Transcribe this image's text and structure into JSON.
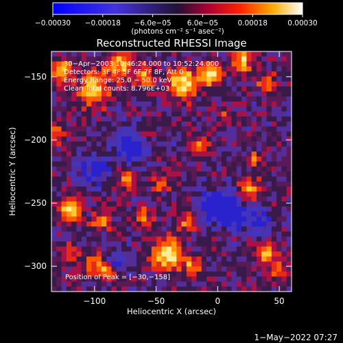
{
  "chart_data": {
    "type": "heatmap",
    "title": "Reconstructed RHESSI Image",
    "xlabel": "Heliocentric X (arcsec)",
    "ylabel": "Heliocentric Y (arcsec)",
    "xlim": [
      -135,
      60
    ],
    "ylim": [
      -320,
      -130
    ],
    "x_ticks": [
      -100,
      -50,
      0,
      50
    ],
    "y_ticks": [
      -150,
      -200,
      -250,
      -300
    ],
    "x_tick_labels": [
      "−100",
      "−50",
      "0",
      "50"
    ],
    "y_tick_labels": [
      "−150",
      "−200",
      "−250",
      "−300"
    ],
    "colorbar": {
      "range": [
        -0.0003,
        0.0003
      ],
      "ticks": [
        -0.0003,
        -0.00018,
        -6e-05,
        6e-05,
        0.00018,
        0.0003
      ],
      "tick_labels": [
        "−0.00030",
        "−0.00018",
        "−6.0e−05",
        "6.0e−05",
        "0.00018",
        "0.00030"
      ],
      "unit_label": "(photons cm⁻² s⁻¹ asec⁻²)"
    },
    "annotations": [
      "30−Apr−2003 10:46:24.000 to 10:52:24.000",
      "Detectors: 3F 4F 5F 6F 7F 8F, Att 0",
      "Energy Range: 25.0 − 50.0 keV",
      "Clean     Total counts: 8.796E+03"
    ],
    "peak_label": "Position of Peak = [−30,−158]",
    "peak_position": [
      -30,
      -158
    ],
    "timestamp": "1−May−2022 07:27",
    "blobs": [
      [
        -125,
        -145,
        9,
        0.7
      ],
      [
        -100,
        -160,
        12,
        0.85
      ],
      [
        -80,
        -140,
        10,
        0.75
      ],
      [
        -60,
        -150,
        8,
        0.65
      ],
      [
        -28,
        -155,
        11,
        1.0
      ],
      [
        -5,
        -148,
        9,
        0.95
      ],
      [
        20,
        -138,
        8,
        0.8
      ],
      [
        40,
        -155,
        7,
        0.6
      ],
      [
        -120,
        -255,
        9,
        0.85
      ],
      [
        -95,
        -265,
        7,
        0.6
      ],
      [
        -75,
        -230,
        8,
        0.55
      ],
      [
        -60,
        -260,
        7,
        0.5
      ],
      [
        -45,
        -235,
        7,
        0.45
      ],
      [
        -15,
        -205,
        8,
        0.6
      ],
      [
        -25,
        -265,
        7,
        0.5
      ],
      [
        30,
        -215,
        6,
        0.45
      ],
      [
        25,
        -240,
        9,
        0.7
      ],
      [
        -40,
        -290,
        12,
        0.95
      ],
      [
        -120,
        -290,
        7,
        0.5
      ],
      [
        -100,
        -300,
        8,
        0.6
      ],
      [
        -20,
        -300,
        7,
        0.6
      ],
      [
        40,
        -290,
        9,
        0.65
      ],
      [
        50,
        -305,
        7,
        0.55
      ],
      [
        -130,
        -195,
        7,
        0.5
      ],
      [
        -60,
        -195,
        6,
        0.4
      ],
      [
        5,
        -180,
        6,
        0.35
      ],
      [
        -90,
        -305,
        6,
        0.5
      ]
    ],
    "neg_blobs": [
      [
        -70,
        -205,
        14,
        0.6
      ],
      [
        10,
        -255,
        13,
        0.85
      ],
      [
        -5,
        -250,
        10,
        0.7
      ],
      [
        -100,
        -225,
        12,
        0.45
      ],
      [
        35,
        -265,
        9,
        0.5
      ],
      [
        -80,
        -295,
        9,
        0.4
      ]
    ]
  }
}
